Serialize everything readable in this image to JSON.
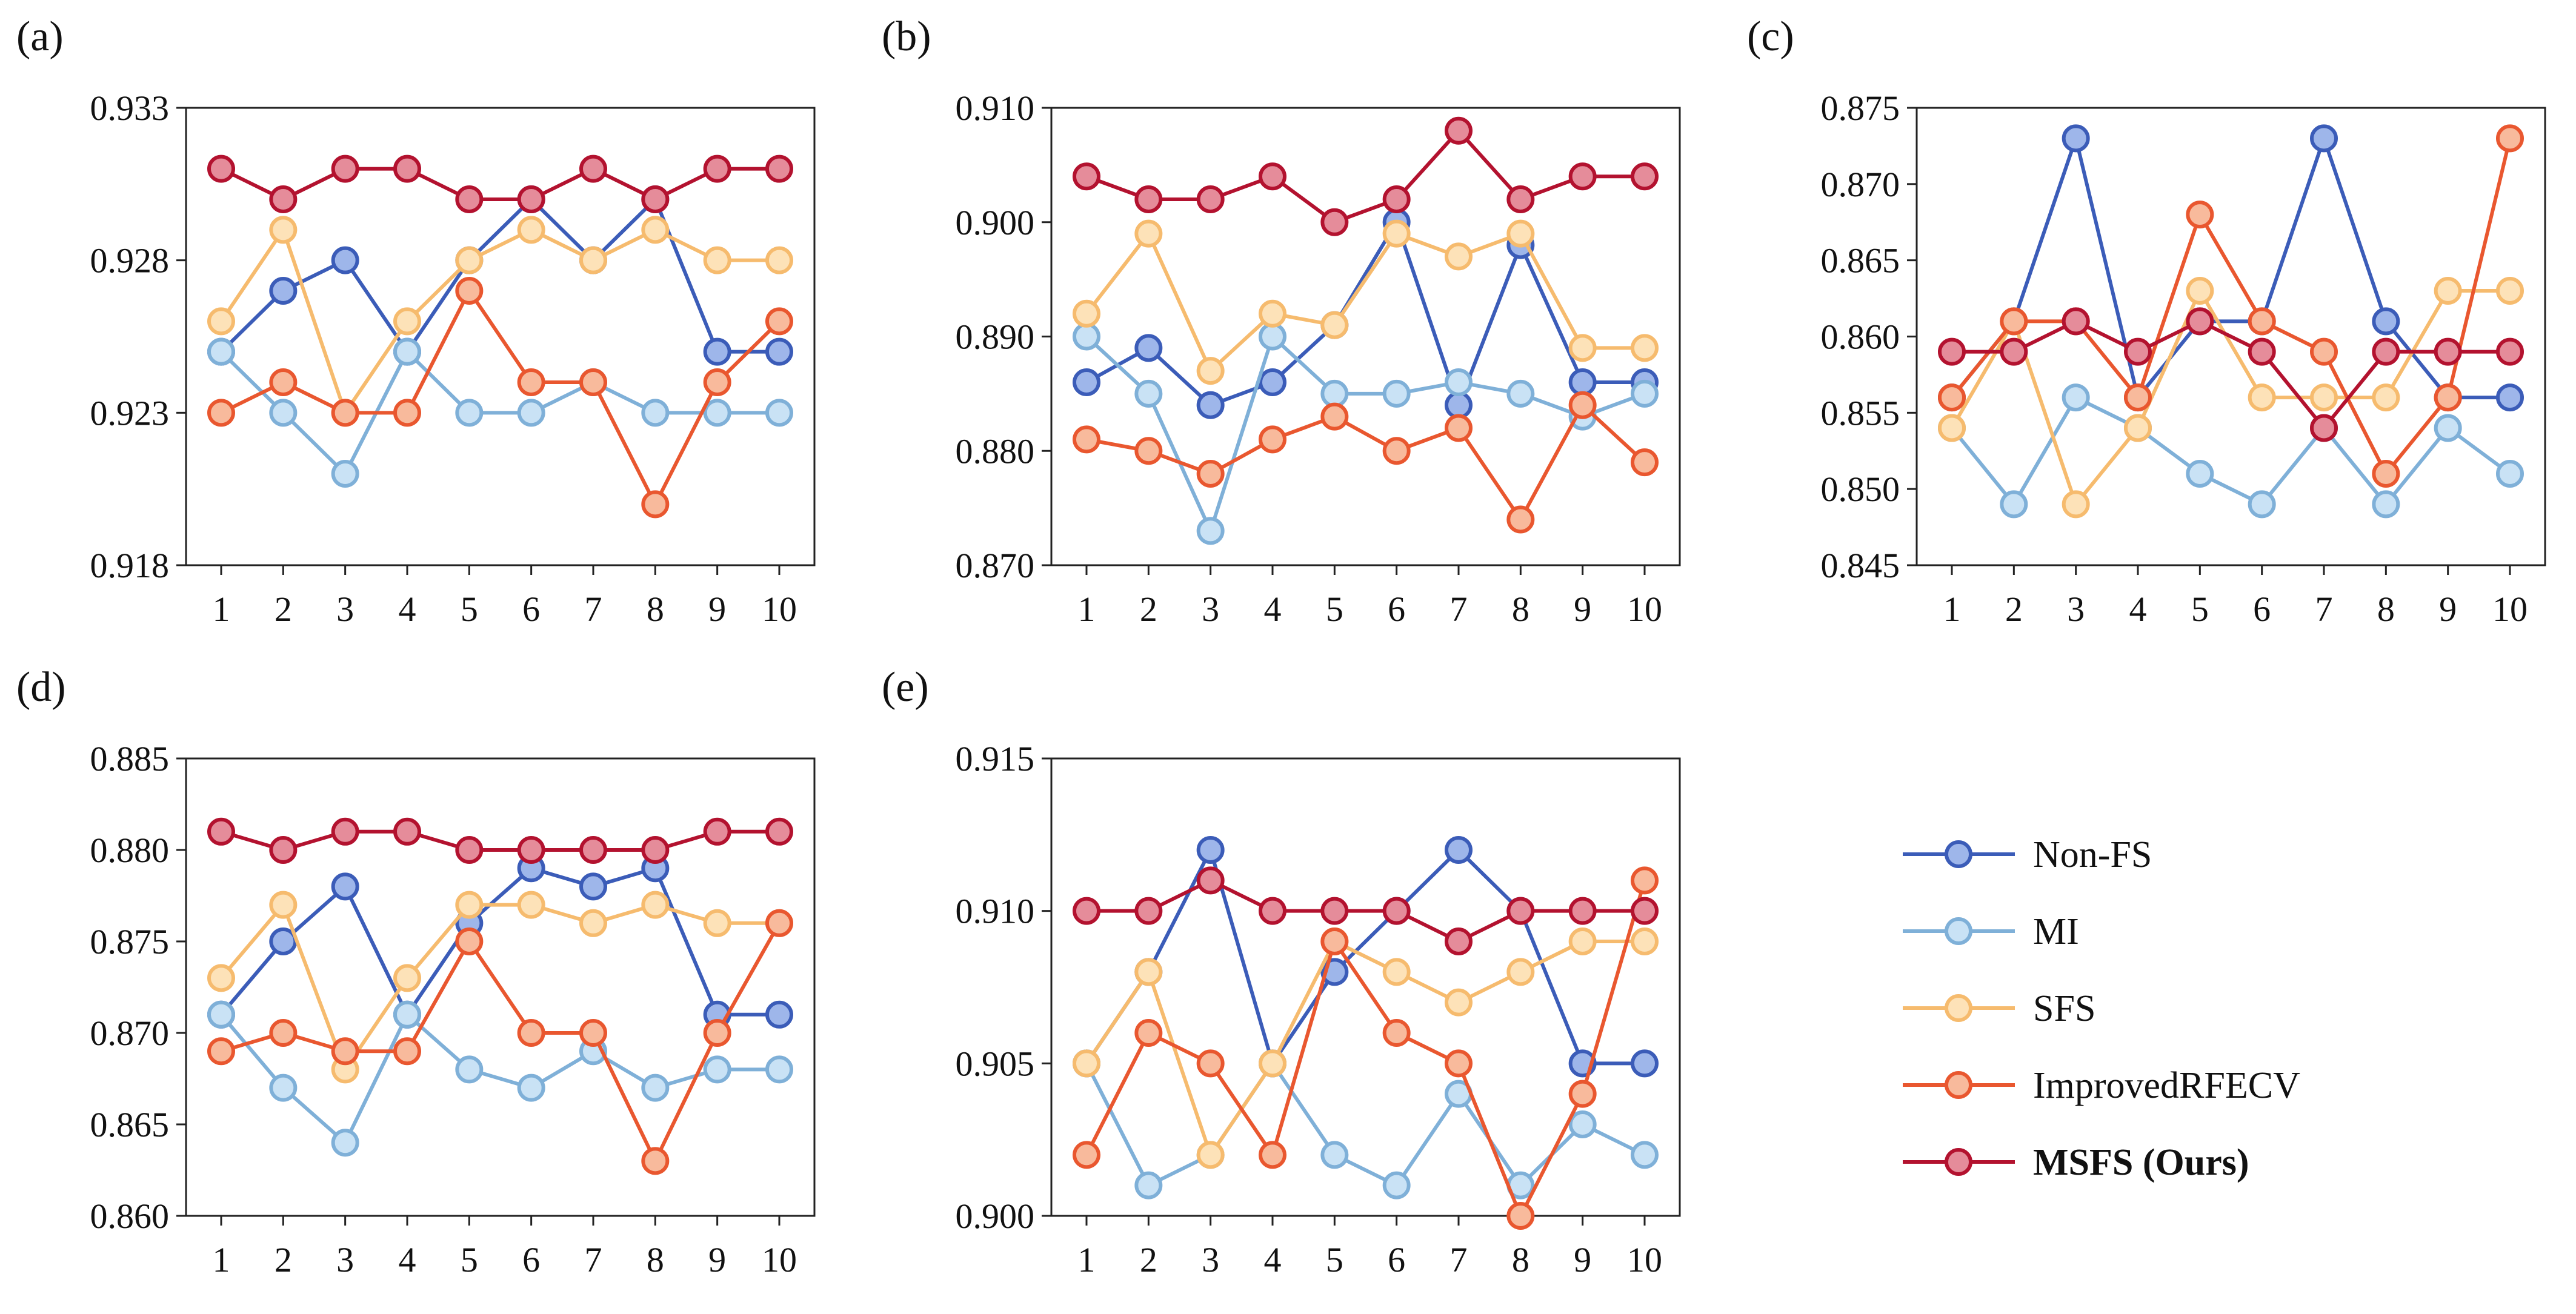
{
  "legend": [
    {
      "name": "Non-FS",
      "color": "#3b5cb8",
      "fill": "#9eb6ea",
      "bold": false
    },
    {
      "name": "MI",
      "color": "#7fb0d8",
      "fill": "#c9e2f5",
      "bold": false
    },
    {
      "name": "SFS",
      "color": "#f6bb6e",
      "fill": "#fde2b8",
      "bold": false
    },
    {
      "name": "ImprovedRFECV",
      "color": "#e9572f",
      "fill": "#f8ba9c",
      "bold": false
    },
    {
      "name": "MSFS (Ours)",
      "color": "#b3122f",
      "fill": "#e58c9a",
      "bold": true
    }
  ],
  "chart_data": [
    {
      "type": "line",
      "panel": "(a)",
      "x": [
        1,
        2,
        3,
        4,
        5,
        6,
        7,
        8,
        9,
        10
      ],
      "ylim": [
        0.918,
        0.933
      ],
      "yticks": [
        "0.918",
        "0.923",
        "0.928",
        "0.933"
      ],
      "series": [
        {
          "name": "Non-FS",
          "values": [
            0.925,
            0.927,
            0.928,
            0.925,
            0.928,
            0.93,
            0.928,
            0.93,
            0.925,
            0.925
          ]
        },
        {
          "name": "MI",
          "values": [
            0.925,
            0.923,
            0.921,
            0.925,
            0.923,
            0.923,
            0.924,
            0.923,
            0.923,
            0.923
          ]
        },
        {
          "name": "SFS",
          "values": [
            0.926,
            0.929,
            0.923,
            0.926,
            0.928,
            0.929,
            0.928,
            0.929,
            0.928,
            0.928
          ]
        },
        {
          "name": "ImprovedRFECV",
          "values": [
            0.923,
            0.924,
            0.923,
            0.923,
            0.927,
            0.924,
            0.924,
            0.92,
            0.924,
            0.926
          ]
        },
        {
          "name": "MSFS (Ours)",
          "values": [
            0.931,
            0.93,
            0.931,
            0.931,
            0.93,
            0.93,
            0.931,
            0.93,
            0.931,
            0.931
          ]
        }
      ]
    },
    {
      "type": "line",
      "panel": "(b)",
      "x": [
        1,
        2,
        3,
        4,
        5,
        6,
        7,
        8,
        9,
        10
      ],
      "ylim": [
        0.87,
        0.91
      ],
      "yticks": [
        "0.870",
        "0.880",
        "0.890",
        "0.900",
        "0.910"
      ],
      "series": [
        {
          "name": "Non-FS",
          "values": [
            0.886,
            0.889,
            0.884,
            0.886,
            0.891,
            0.9,
            0.884,
            0.898,
            0.886,
            0.886
          ]
        },
        {
          "name": "MI",
          "values": [
            0.89,
            0.885,
            0.873,
            0.89,
            0.885,
            0.885,
            0.886,
            0.885,
            0.883,
            0.885
          ]
        },
        {
          "name": "SFS",
          "values": [
            0.892,
            0.899,
            0.887,
            0.892,
            0.891,
            0.899,
            0.897,
            0.899,
            0.889,
            0.889
          ]
        },
        {
          "name": "ImprovedRFECV",
          "values": [
            0.881,
            0.88,
            0.878,
            0.881,
            0.883,
            0.88,
            0.882,
            0.874,
            0.884,
            0.879
          ]
        },
        {
          "name": "MSFS (Ours)",
          "values": [
            0.904,
            0.902,
            0.902,
            0.904,
            0.9,
            0.902,
            0.908,
            0.902,
            0.904,
            0.904
          ]
        }
      ]
    },
    {
      "type": "line",
      "panel": "(c)",
      "x": [
        1,
        2,
        3,
        4,
        5,
        6,
        7,
        8,
        9,
        10
      ],
      "ylim": [
        0.845,
        0.875
      ],
      "yticks": [
        "0.845",
        "0.850",
        "0.855",
        "0.860",
        "0.865",
        "0.870",
        "0.875"
      ],
      "series": [
        {
          "name": "Non-FS",
          "values": [
            0.856,
            0.861,
            0.873,
            0.856,
            0.861,
            0.861,
            0.873,
            0.861,
            0.856,
            0.856
          ]
        },
        {
          "name": "MI",
          "values": [
            0.854,
            0.849,
            0.856,
            0.854,
            0.851,
            0.849,
            0.854,
            0.849,
            0.854,
            0.851
          ]
        },
        {
          "name": "SFS",
          "values": [
            0.854,
            0.861,
            0.849,
            0.854,
            0.863,
            0.856,
            0.856,
            0.856,
            0.863,
            0.863
          ]
        },
        {
          "name": "ImprovedRFECV",
          "values": [
            0.856,
            0.861,
            0.861,
            0.856,
            0.868,
            0.861,
            0.859,
            0.851,
            0.856,
            0.873
          ]
        },
        {
          "name": "MSFS (Ours)",
          "values": [
            0.859,
            0.859,
            0.861,
            0.859,
            0.861,
            0.859,
            0.854,
            0.859,
            0.859,
            0.859
          ]
        }
      ]
    },
    {
      "type": "line",
      "panel": "(d)",
      "x": [
        1,
        2,
        3,
        4,
        5,
        6,
        7,
        8,
        9,
        10
      ],
      "ylim": [
        0.86,
        0.885
      ],
      "yticks": [
        "0.860",
        "0.865",
        "0.870",
        "0.875",
        "0.880",
        "0.885"
      ],
      "series": [
        {
          "name": "Non-FS",
          "values": [
            0.871,
            0.875,
            0.878,
            0.871,
            0.876,
            0.879,
            0.878,
            0.879,
            0.871,
            0.871
          ]
        },
        {
          "name": "MI",
          "values": [
            0.871,
            0.867,
            0.864,
            0.871,
            0.868,
            0.867,
            0.869,
            0.867,
            0.868,
            0.868
          ]
        },
        {
          "name": "SFS",
          "values": [
            0.873,
            0.877,
            0.868,
            0.873,
            0.877,
            0.877,
            0.876,
            0.877,
            0.876,
            0.876
          ]
        },
        {
          "name": "ImprovedRFECV",
          "values": [
            0.869,
            0.87,
            0.869,
            0.869,
            0.875,
            0.87,
            0.87,
            0.863,
            0.87,
            0.876
          ]
        },
        {
          "name": "MSFS (Ours)",
          "values": [
            0.881,
            0.88,
            0.881,
            0.881,
            0.88,
            0.88,
            0.88,
            0.88,
            0.881,
            0.881
          ]
        }
      ]
    },
    {
      "type": "line",
      "panel": "(e)",
      "x": [
        1,
        2,
        3,
        4,
        5,
        6,
        7,
        8,
        9,
        10
      ],
      "ylim": [
        0.9,
        0.915
      ],
      "yticks": [
        "0.900",
        "0.905",
        "0.910",
        "0.915"
      ],
      "series": [
        {
          "name": "Non-FS",
          "values": [
            0.905,
            0.908,
            0.912,
            0.905,
            0.908,
            0.91,
            0.912,
            0.91,
            0.905,
            0.905
          ]
        },
        {
          "name": "MI",
          "values": [
            0.905,
            0.901,
            0.902,
            0.905,
            0.902,
            0.901,
            0.904,
            0.901,
            0.903,
            0.902
          ]
        },
        {
          "name": "SFS",
          "values": [
            0.905,
            0.908,
            0.902,
            0.905,
            0.909,
            0.908,
            0.907,
            0.908,
            0.909,
            0.909
          ]
        },
        {
          "name": "ImprovedRFECV",
          "values": [
            0.902,
            0.906,
            0.905,
            0.902,
            0.909,
            0.906,
            0.905,
            0.9,
            0.904,
            0.911
          ]
        },
        {
          "name": "MSFS (Ours)",
          "values": [
            0.91,
            0.91,
            0.911,
            0.91,
            0.91,
            0.91,
            0.909,
            0.91,
            0.91,
            0.91
          ]
        }
      ]
    }
  ]
}
